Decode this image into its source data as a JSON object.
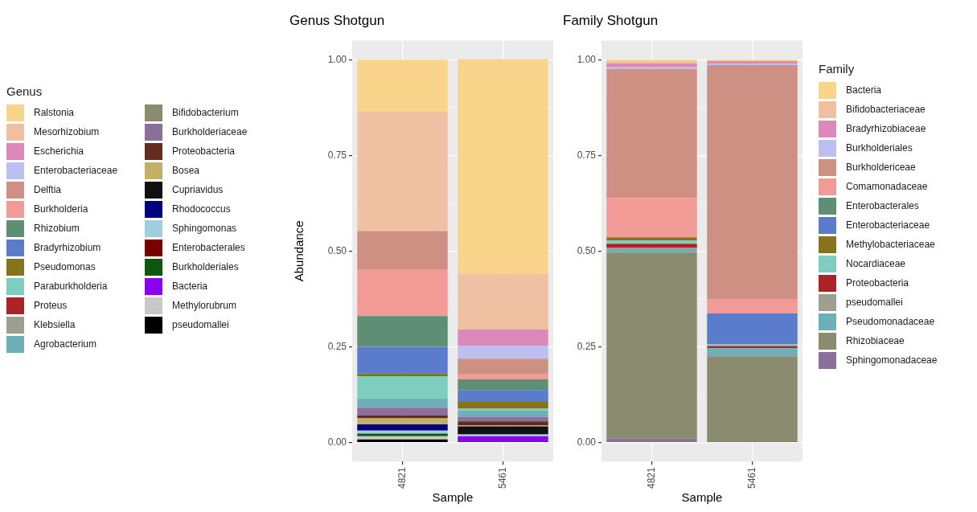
{
  "chart_data": [
    {
      "type": "bar",
      "title": "Genus Shotgun",
      "xlabel": "Sample",
      "ylabel": "Abundance",
      "legend_title": "Genus",
      "legend": "left",
      "stacked": true,
      "grid": true,
      "categories": [
        "4821",
        "5461"
      ],
      "ylim": [
        -0.05,
        1.05
      ],
      "yticks": [
        {
          "value": 0,
          "label": "0.00"
        },
        {
          "value": 0.25,
          "label": "0.25"
        },
        {
          "value": 0.5,
          "label": "0.50"
        },
        {
          "value": 0.75,
          "label": "0.75"
        },
        {
          "value": 1,
          "label": "1.00"
        }
      ],
      "series": [
        {
          "name": "pseudomallei",
          "color": "#000000",
          "values": [
            0.008,
            null
          ]
        },
        {
          "name": "Methylorubrum",
          "color": "#c8c8c8",
          "values": [
            0.008,
            null
          ]
        },
        {
          "name": "Bacteria",
          "color": "#8b00f0",
          "values": [
            null,
            0.016
          ]
        },
        {
          "name": "Burkholderiales",
          "color": "#0b5a0b",
          "values": [
            0.007,
            null
          ]
        },
        {
          "name": "Enterobacterales",
          "color": "#7a0000",
          "values": [
            null,
            null
          ]
        },
        {
          "name": "Sphingomonas",
          "color": "#9ecfe0",
          "values": [
            0.008,
            0.005
          ]
        },
        {
          "name": "Rhodococcus",
          "color": "#000080",
          "values": [
            0.016,
            null
          ]
        },
        {
          "name": "Cupriavidus",
          "color": "#111111",
          "values": [
            null,
            0.021
          ]
        },
        {
          "name": "Bosea",
          "color": "#c4af67",
          "values": [
            0.016,
            0.003
          ]
        },
        {
          "name": "Proteobacteria",
          "color": "#642b20",
          "values": [
            0.008,
            0.01
          ]
        },
        {
          "name": "Burkholderiaceae",
          "color": "#8a709a",
          "values": [
            0.02,
            0.012
          ]
        },
        {
          "name": "Bifidobacterium",
          "color": "#8b8b70",
          "values": [
            null,
            null
          ]
        },
        {
          "name": "Agrobacterium",
          "color": "#6eb0ba",
          "values": [
            0.024,
            0.016
          ]
        },
        {
          "name": "Klebsiella",
          "color": "#9f9f91",
          "values": [
            null,
            null
          ]
        },
        {
          "name": "Proteus",
          "color": "#ac2225",
          "values": [
            null,
            null
          ]
        },
        {
          "name": "Paraburkholderia",
          "color": "#7ecebf",
          "values": [
            0.058,
            0.005
          ]
        },
        {
          "name": "Pseudomonas",
          "color": "#86741c",
          "values": [
            0.007,
            0.018
          ]
        },
        {
          "name": "Bradyrhizobium",
          "color": "#5b7ccd",
          "values": [
            0.07,
            0.031
          ]
        },
        {
          "name": "Rhizobium",
          "color": "#5e8f74",
          "values": [
            0.08,
            0.028
          ]
        },
        {
          "name": "Burkholderia",
          "color": "#f29b96",
          "values": [
            0.121,
            0.013
          ]
        },
        {
          "name": "Delftia",
          "color": "#cd9083",
          "values": [
            0.101,
            0.041
          ]
        },
        {
          "name": "Enterobacteriaceae",
          "color": "#bcbff0",
          "values": [
            null,
            0.034
          ]
        },
        {
          "name": "Escherichia",
          "color": "#dc88b8",
          "values": [
            null,
            0.042
          ]
        },
        {
          "name": "Mesorhizobium",
          "color": "#f0c0a2",
          "values": [
            0.312,
            0.146
          ]
        },
        {
          "name": "Ralstonia",
          "color": "#f9d48b",
          "values": [
            0.136,
            0.56
          ]
        }
      ]
    },
    {
      "type": "bar",
      "title": "Family Shotgun",
      "xlabel": "Sample",
      "legend_title": "Family",
      "legend": "right",
      "stacked": true,
      "grid": true,
      "categories": [
        "4821",
        "5461"
      ],
      "ylim": [
        -0.05,
        1.05
      ],
      "yticks": [
        {
          "value": 0,
          "label": "0.00"
        },
        {
          "value": 0.25,
          "label": "0.25"
        },
        {
          "value": 0.5,
          "label": "0.50"
        },
        {
          "value": 0.75,
          "label": "0.75"
        },
        {
          "value": 1,
          "label": "1.00"
        }
      ],
      "series": [
        {
          "name": "Sphingomonadaceae",
          "color": "#8a709a",
          "values": [
            0.01,
            0.003
          ]
        },
        {
          "name": "Rhizobiaceae",
          "color": "#8b8b70",
          "values": [
            0.486,
            0.222
          ]
        },
        {
          "name": "Pseudomonadaceae",
          "color": "#6eb0ba",
          "values": [
            0.009,
            0.021
          ]
        },
        {
          "name": "pseudomallei",
          "color": "#9f9f91",
          "values": [
            0.004,
            null
          ]
        },
        {
          "name": "Proteobacteria",
          "color": "#ac2225",
          "values": [
            0.01,
            0.006
          ]
        },
        {
          "name": "Nocardiaceae",
          "color": "#7ecebf",
          "values": [
            0.009,
            0.004
          ]
        },
        {
          "name": "Methylobacteriaceae",
          "color": "#86741c",
          "values": [
            0.008,
            null
          ]
        },
        {
          "name": "Enterobacteriaceae",
          "color": "#5b7ccd",
          "values": [
            null,
            0.081
          ]
        },
        {
          "name": "Enterobacterales",
          "color": "#5e8f74",
          "values": [
            null,
            null
          ]
        },
        {
          "name": "Comamonadaceae",
          "color": "#f29b96",
          "values": [
            0.103,
            0.038
          ]
        },
        {
          "name": "Burkholdericeae",
          "color": "#cd9083",
          "values": [
            0.337,
            0.611
          ]
        },
        {
          "name": "Burkholderiales",
          "color": "#bcbff0",
          "values": [
            0.004,
            0.004
          ]
        },
        {
          "name": "Bradyrhizobiaceae",
          "color": "#dc88b8",
          "values": [
            0.01,
            0.006
          ]
        },
        {
          "name": "Bifidobacteriaceae",
          "color": "#f0c0a2",
          "values": [
            0.006,
            null
          ]
        },
        {
          "name": "Bacteria",
          "color": "#f9d48b",
          "values": [
            0.004,
            0.004
          ]
        }
      ]
    }
  ]
}
